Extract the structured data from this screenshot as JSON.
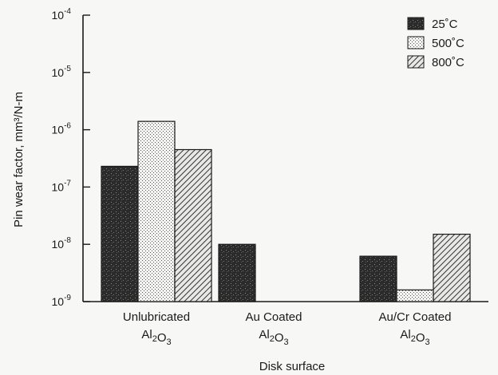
{
  "chart_data": {
    "type": "bar",
    "yscale": "log",
    "ylim": [
      1e-09,
      0.0001
    ],
    "ylabel": "Pin wear factor, mm³/N-m",
    "xlabel": "Disk surface",
    "y_ticks": [
      {
        "value": 1e-09,
        "base": "10",
        "exp": "-9"
      },
      {
        "value": 1e-08,
        "base": "10",
        "exp": "-8"
      },
      {
        "value": 1e-07,
        "base": "10",
        "exp": "-7"
      },
      {
        "value": 1e-06,
        "base": "10",
        "exp": "-6"
      },
      {
        "value": 1e-05,
        "base": "10",
        "exp": "-5"
      },
      {
        "value": 0.0001,
        "base": "10",
        "exp": "-4"
      }
    ],
    "categories": [
      {
        "line1": "Unlubricated",
        "line2": "Al2O3"
      },
      {
        "line1": "Au Coated",
        "line2": "Al2O3"
      },
      {
        "line1": "Au/Cr Coated",
        "line2": "Al2O3"
      }
    ],
    "series": [
      {
        "name": "25˚C",
        "pattern": "dark",
        "values": [
          2.3e-07,
          1e-08,
          6.2e-09
        ]
      },
      {
        "name": "500˚C",
        "pattern": "dotted",
        "values": [
          1.4e-06,
          null,
          1.6e-09
        ]
      },
      {
        "name": "800˚C",
        "pattern": "hatched",
        "values": [
          4.5e-07,
          null,
          1.5e-08
        ]
      }
    ],
    "legend_position": "top-right",
    "grid": false
  }
}
